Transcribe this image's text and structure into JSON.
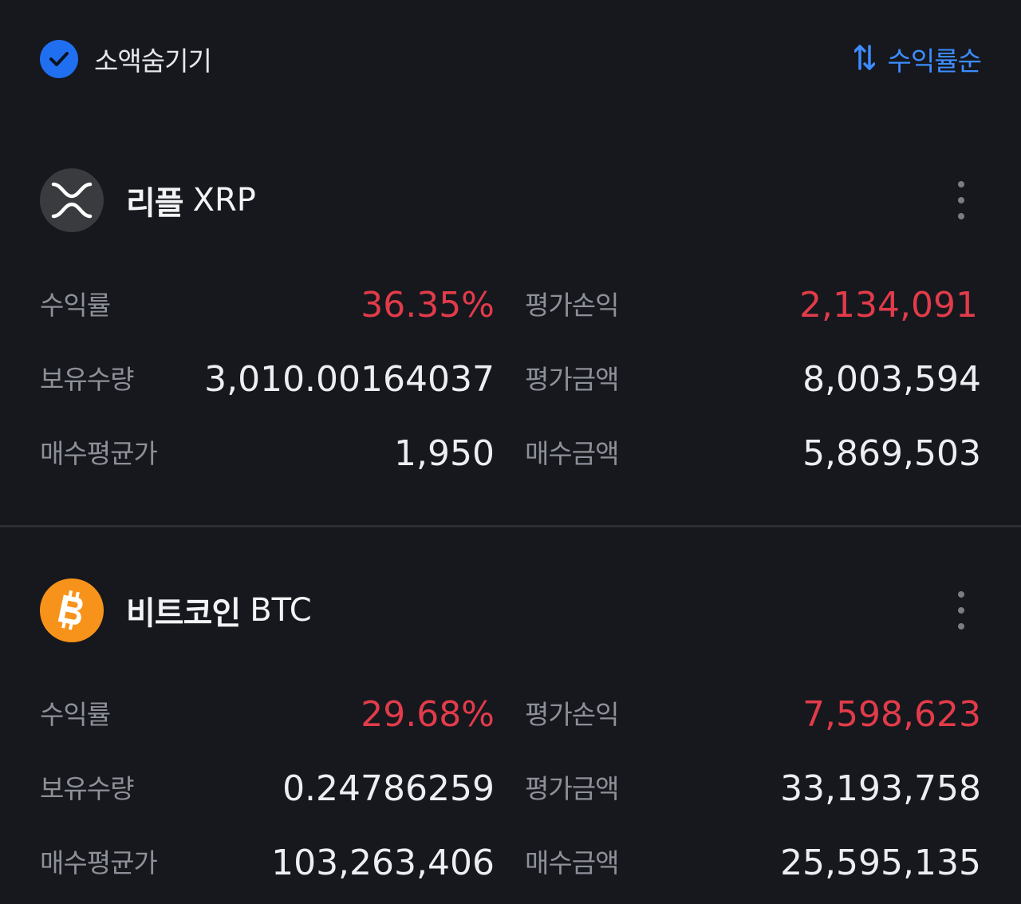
{
  "header": {
    "hide_small_label": "소액숨기기",
    "hide_small_checked": true,
    "sort_label": "수익률순"
  },
  "colors": {
    "background": "#16181d",
    "accent_blue": "#1f6ff0",
    "profit_red": "#e23b4a",
    "label_gray": "#8d9099"
  },
  "coins": [
    {
      "name": "리플",
      "symbol": "XRP",
      "icon": "xrp-logo-icon",
      "rows": [
        {
          "label_left": "수익률",
          "value_left": "36.35%",
          "label_right": "평가손익",
          "value_right": "2,134,091"
        },
        {
          "label_left": "보유수량",
          "value_left": "3,010.00164037",
          "label_right": "평가금액",
          "value_right": "8,003,594"
        },
        {
          "label_left": "매수평균가",
          "value_left": "1,950",
          "label_right": "매수금액",
          "value_right": "5,869,503"
        }
      ]
    },
    {
      "name": "비트코인",
      "symbol": "BTC",
      "icon": "bitcoin-logo-icon",
      "rows": [
        {
          "label_left": "수익률",
          "value_left": "29.68%",
          "label_right": "평가손익",
          "value_right": "7,598,623"
        },
        {
          "label_left": "보유수량",
          "value_left": "0.24786259",
          "label_right": "평가금액",
          "value_right": "33,193,758"
        },
        {
          "label_left": "매수평균가",
          "value_left": "103,263,406",
          "label_right": "매수금액",
          "value_right": "25,595,135"
        }
      ]
    }
  ]
}
